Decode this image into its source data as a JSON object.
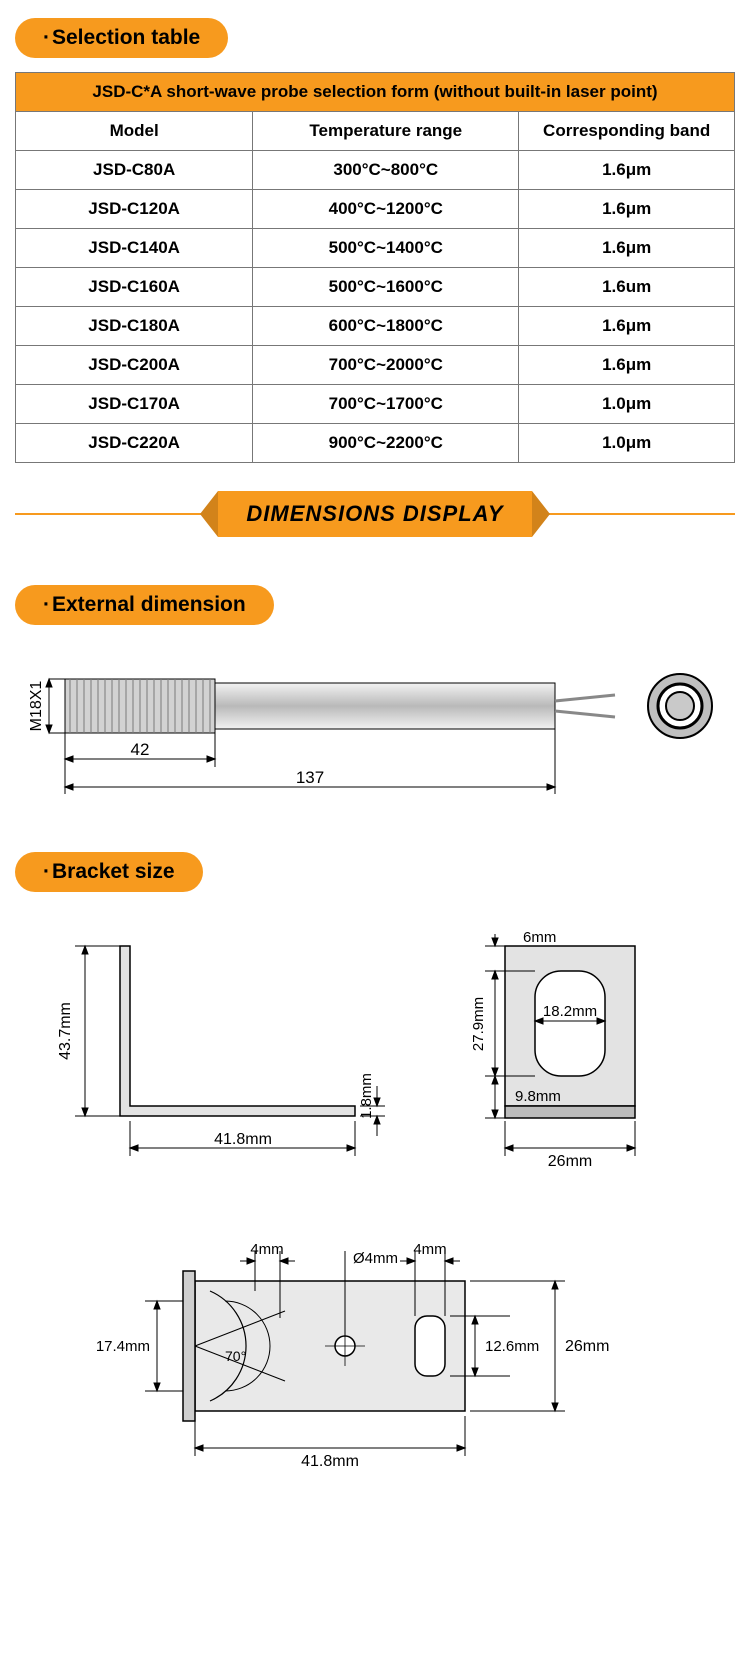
{
  "colors": {
    "accent": "#f79a1e",
    "border": "#777777",
    "line": "#000000",
    "shade": "#b9b9b9",
    "shadeLight": "#d2d2d2",
    "bg": "#ffffff"
  },
  "pills": {
    "selection": "Selection table",
    "external": "External dimension",
    "bracket": "Bracket size"
  },
  "banner": "DIMENSIONS DISPLAY",
  "selectionTable": {
    "title": "JSD-C*A short-wave probe selection form (without built-in laser point)",
    "headers": [
      "Model",
      "Temperature range",
      "Corresponding band"
    ],
    "rows": [
      [
        "JSD-C80A",
        "300°C~800°C",
        "1.6μm"
      ],
      [
        "JSD-C120A",
        "400°C~1200°C",
        "1.6μm"
      ],
      [
        "JSD-C140A",
        "500°C~1400°C",
        "1.6μm"
      ],
      [
        "JSD-C160A",
        "500°C~1600°C",
        "1.6um"
      ],
      [
        "JSD-C180A",
        "600°C~1800°C",
        "1.6μm"
      ],
      [
        "JSD-C200A",
        "700°C~2000°C",
        "1.6μm"
      ],
      [
        "JSD-C170A",
        "700°C~1700°C",
        "1.0μm"
      ],
      [
        "JSD-C220A",
        "900°C~2200°C",
        "1.0μm"
      ]
    ],
    "colWidths": [
      "33%",
      "37%",
      "30%"
    ]
  },
  "externalDim": {
    "thread": "M18X1",
    "threadLen": "42",
    "totalLen": "137"
  },
  "bracketSide": {
    "height": "43.7mm",
    "base": "41.8mm",
    "thick": "1.8mm"
  },
  "bracketFront": {
    "top": "6mm",
    "slotH": "27.9mm",
    "slotW": "18.2mm",
    "below": "9.8mm",
    "width": "26mm"
  },
  "bracketTop": {
    "leftH": "17.4mm",
    "angle": "70°",
    "gapL": "4mm",
    "hole": "Ø4mm",
    "gapR": "4mm",
    "slotH": "12.6mm",
    "rightH": "26mm",
    "base": "41.8mm"
  }
}
